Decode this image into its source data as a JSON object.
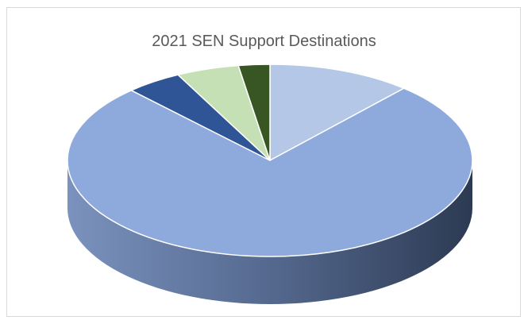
{
  "chart_data": {
    "type": "pie",
    "title": "2021 SEN Support Destinations",
    "style": "3d",
    "slices": [
      {
        "value": 11.5,
        "color": "#b4c7e7"
      },
      {
        "value": 76.5,
        "color": "#8ea9db"
      },
      {
        "value": 4.5,
        "color": "#2f5597"
      },
      {
        "value": 5.0,
        "color": "#c5e0b4"
      },
      {
        "value": 2.5,
        "color": "#375623"
      }
    ],
    "legend": "none",
    "data_labels": false
  }
}
